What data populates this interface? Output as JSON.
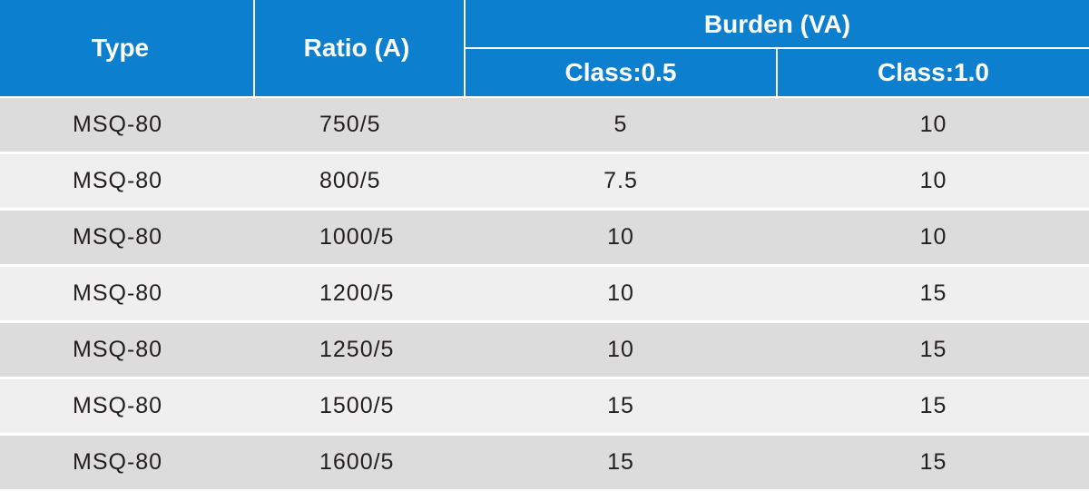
{
  "header": {
    "type": "Type",
    "ratio": "Ratio (A)",
    "burden": "Burden (VA)",
    "class_05": "Class:0.5",
    "class_10": "Class:1.0"
  },
  "rows": [
    {
      "type": "MSQ-80",
      "ratio": "750/5",
      "class_05": "5",
      "class_10": "10"
    },
    {
      "type": "MSQ-80",
      "ratio": "800/5",
      "class_05": "7.5",
      "class_10": "10"
    },
    {
      "type": "MSQ-80",
      "ratio": "1000/5",
      "class_05": "10",
      "class_10": "10"
    },
    {
      "type": "MSQ-80",
      "ratio": "1200/5",
      "class_05": "10",
      "class_10": "15"
    },
    {
      "type": "MSQ-80",
      "ratio": "1250/5",
      "class_05": "10",
      "class_10": "15"
    },
    {
      "type": "MSQ-80",
      "ratio": "1500/5",
      "class_05": "15",
      "class_10": "15"
    },
    {
      "type": "MSQ-80",
      "ratio": "1600/5",
      "class_05": "15",
      "class_10": "15"
    }
  ],
  "colors": {
    "header_bg": "#0c80cf",
    "header_text": "#ffffff",
    "row_odd": "#dcdcdd",
    "row_even": "#efeff0",
    "body_text": "#231f20"
  }
}
